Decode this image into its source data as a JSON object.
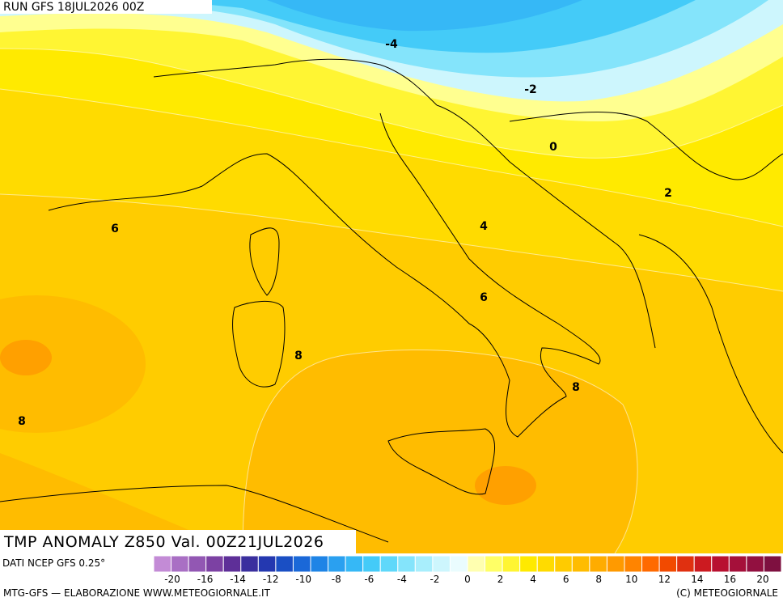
{
  "header": "RUN GFS 18JUL2026 00Z",
  "map_title": "TMP ANOMALY Z850 Val. 00Z21JUL2026",
  "source": "DATI NCEP GFS 0.25°",
  "footer_left": "MTG-GFS — ELABORAZIONE WWW.METEOGIORNALE.IT",
  "footer_right": "(C) METEOGIORNALE",
  "contour_labels": [
    -4,
    -2,
    0,
    2,
    4,
    6,
    6,
    8,
    8,
    8
  ],
  "colorbar": {
    "tick_labels": [
      -20,
      -16,
      -14,
      -12,
      -10,
      -8,
      -6,
      -4,
      -2,
      0,
      2,
      4,
      6,
      8,
      10,
      12,
      14,
      16,
      20
    ],
    "colors": [
      "#c38bd6",
      "#a96fc4",
      "#9257b3",
      "#7c41a3",
      "#5e2f98",
      "#3a2f9e",
      "#2438b0",
      "#1a4fc4",
      "#1a68d8",
      "#1e84e6",
      "#2aa0f0",
      "#36b8f6",
      "#44cbf8",
      "#5fd8fa",
      "#84e4fb",
      "#a8eefc",
      "#cdf6fd",
      "#eafcfe",
      "#ffffb0",
      "#ffff66",
      "#fff533",
      "#ffea00",
      "#ffdb00",
      "#ffcb00",
      "#ffbc00",
      "#ffac00",
      "#ff9a00",
      "#ff8400",
      "#ff6a00",
      "#f24a00",
      "#e03010",
      "#cc1a20",
      "#b81030",
      "#a5103a",
      "#921040",
      "#7e1040"
    ]
  }
}
